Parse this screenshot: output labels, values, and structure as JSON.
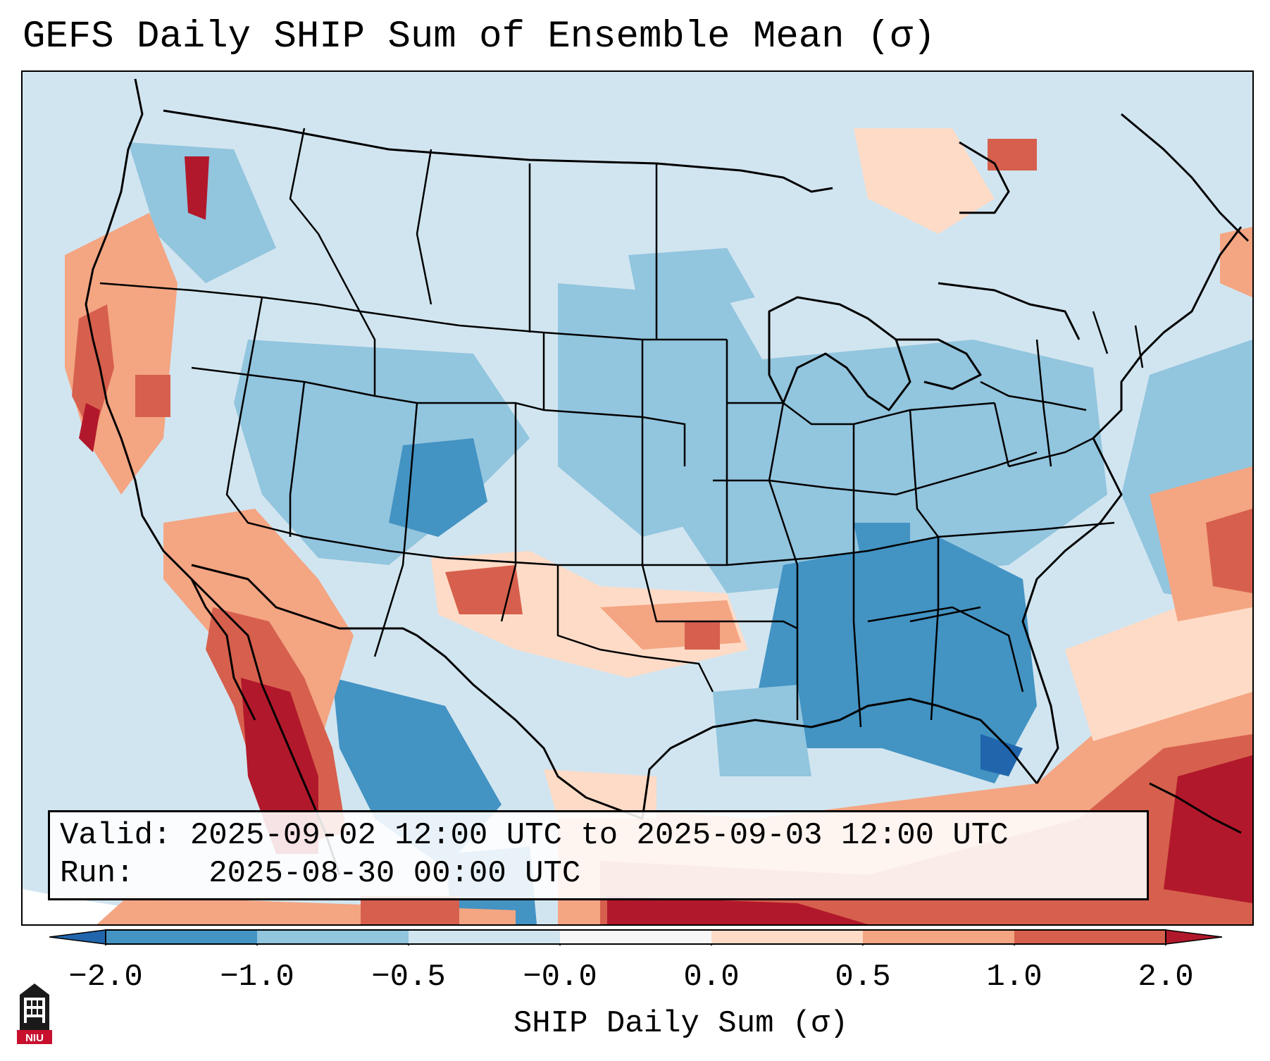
{
  "title": "GEFS Daily SHIP Sum of Ensemble Mean (σ)",
  "info": {
    "valid_label": "Valid:",
    "valid_value": "2025-09-02 12:00 UTC to 2025-09-03 12:00 UTC",
    "run_label": "Run:",
    "run_value": "2025-08-30 00:00 UTC"
  },
  "colorbar": {
    "label": "SHIP Daily Sum (σ)",
    "ticks": [
      "−2.0",
      "−1.0",
      "−0.5",
      "−0.0",
      "0.0",
      "0.5",
      "1.0",
      "2.0"
    ],
    "colors": [
      "#2166ac",
      "#4393c3",
      "#92c5de",
      "#d1e5f0",
      "#f7f7f7",
      "#fddbc7",
      "#f4a582",
      "#d6604d",
      "#b2182b"
    ],
    "bin_colors": [
      "#4393c3",
      "#92c5de",
      "#d1e5f0",
      "#f7f7f7",
      "#fddbc7",
      "#f4a582",
      "#d6604d"
    ],
    "under_color": "#2166ac",
    "over_color": "#b2182b"
  },
  "logo": {
    "text": "NIU",
    "icon": "university-tower-icon"
  }
}
